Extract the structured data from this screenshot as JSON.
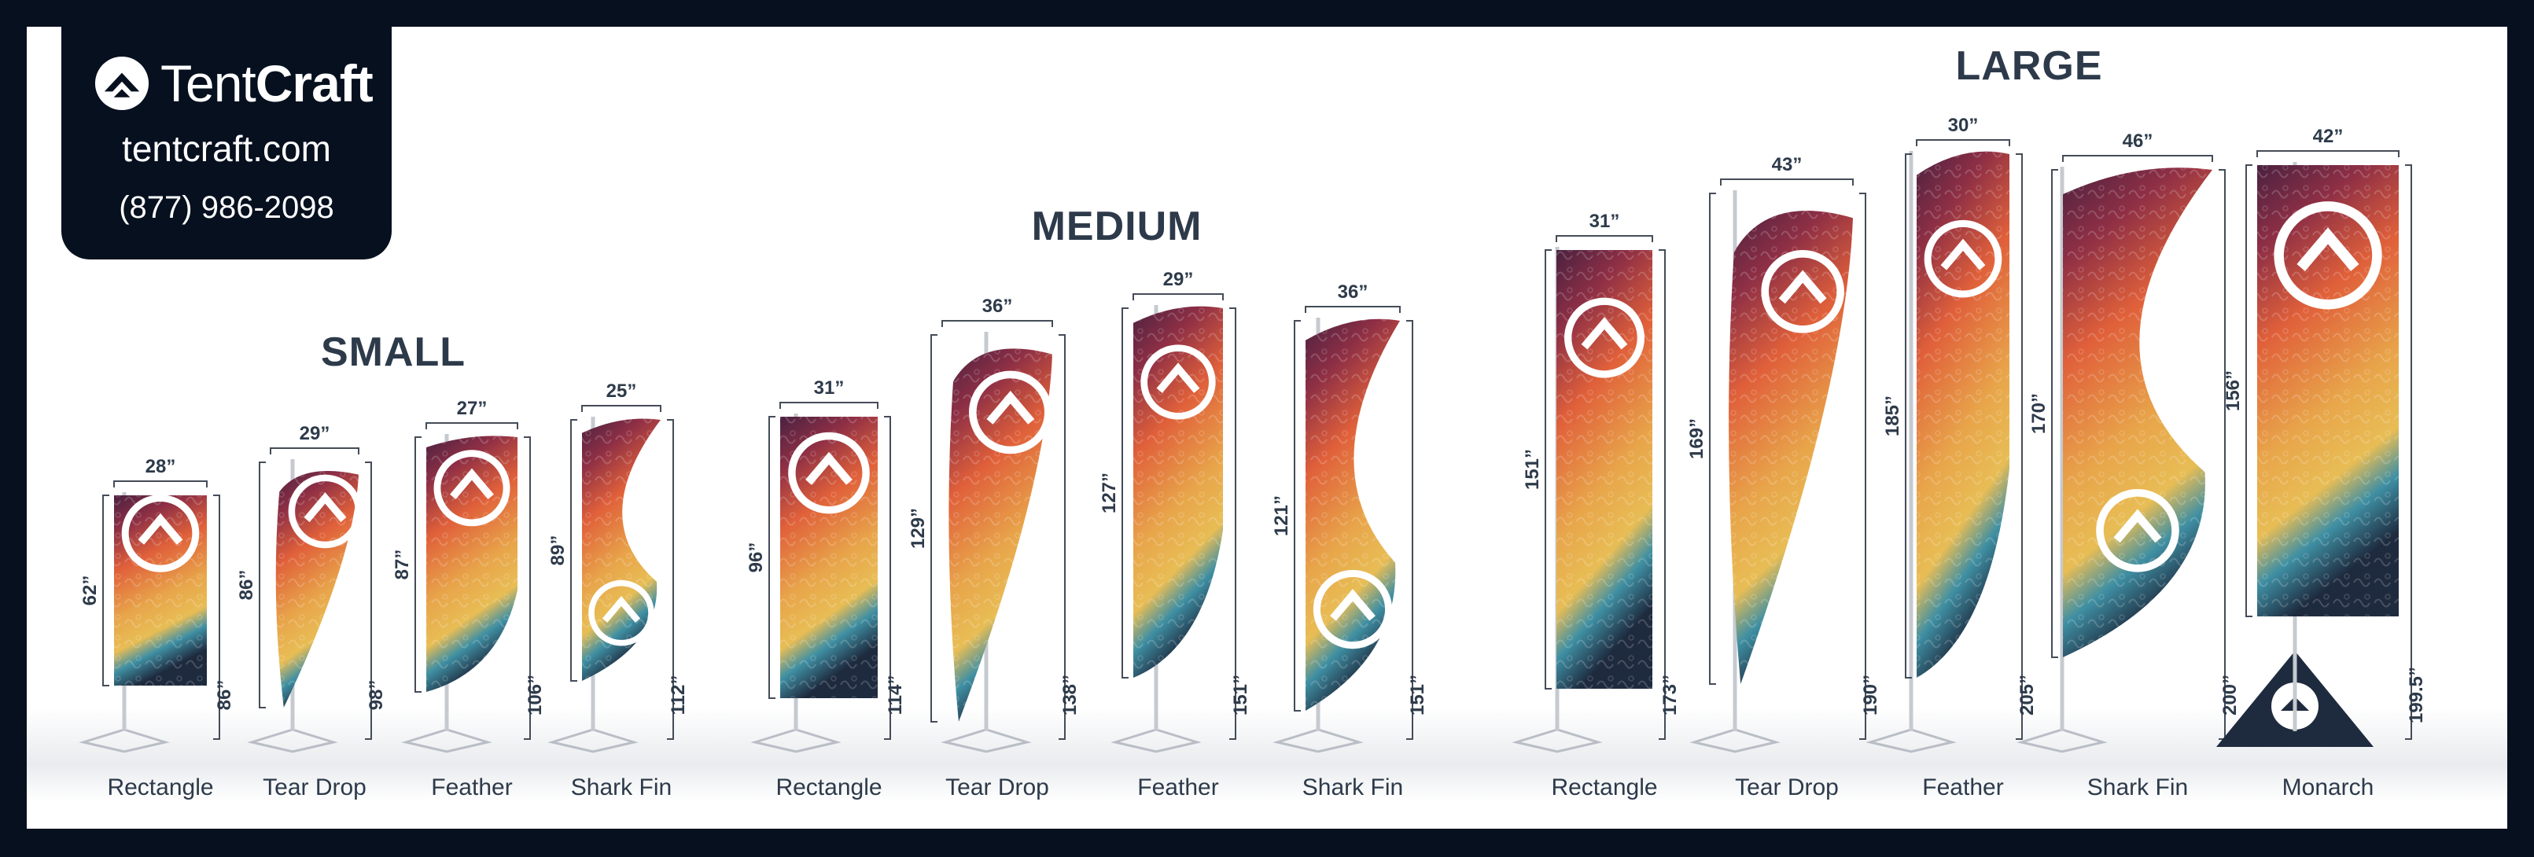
{
  "brand": {
    "name_part1": "Tent",
    "name_part2": "Craft",
    "website": "tentcraft.com",
    "phone": "(877) 986-2098"
  },
  "groups": [
    {
      "title": "SMALL",
      "flags": [
        {
          "shape": "Rectangle",
          "width": "28”",
          "flag_height": "62”",
          "total_height": "86”"
        },
        {
          "shape": "Tear Drop",
          "width": "29”",
          "flag_height": "86”",
          "total_height": "98”"
        },
        {
          "shape": "Feather",
          "width": "27”",
          "flag_height": "87”",
          "total_height": "106”"
        },
        {
          "shape": "Shark Fin",
          "width": "25”",
          "flag_height": "89”",
          "total_height": "112”"
        }
      ]
    },
    {
      "title": "MEDIUM",
      "flags": [
        {
          "shape": "Rectangle",
          "width": "31”",
          "flag_height": "96”",
          "total_height": "114”"
        },
        {
          "shape": "Tear Drop",
          "width": "36”",
          "flag_height": "129”",
          "total_height": "138”"
        },
        {
          "shape": "Feather",
          "width": "29”",
          "flag_height": "127”",
          "total_height": "151”"
        },
        {
          "shape": "Shark Fin",
          "width": "36”",
          "flag_height": "121”",
          "total_height": "151”"
        }
      ]
    },
    {
      "title": "LARGE",
      "flags": [
        {
          "shape": "Rectangle",
          "width": "31”",
          "flag_height": "151”",
          "total_height": "173”"
        },
        {
          "shape": "Tear Drop",
          "width": "43”",
          "flag_height": "169”",
          "total_height": "190”"
        },
        {
          "shape": "Feather",
          "width": "30”",
          "flag_height": "185”",
          "total_height": "205”"
        },
        {
          "shape": "Shark Fin",
          "width": "46”",
          "flag_height": "170”",
          "total_height": "200”"
        },
        {
          "shape": "Monarch",
          "width": "42”",
          "flag_height": "156”",
          "total_height": "199.5”"
        }
      ]
    }
  ],
  "colors": {
    "frame": "#06101f",
    "text": "#2d3a4a",
    "flag_top": "#4a2140",
    "flag_mid": "#e0603a",
    "flag_low": "#e8b54a",
    "flag_teal": "#3f8fa3",
    "flag_navy": "#1e2a3e"
  }
}
